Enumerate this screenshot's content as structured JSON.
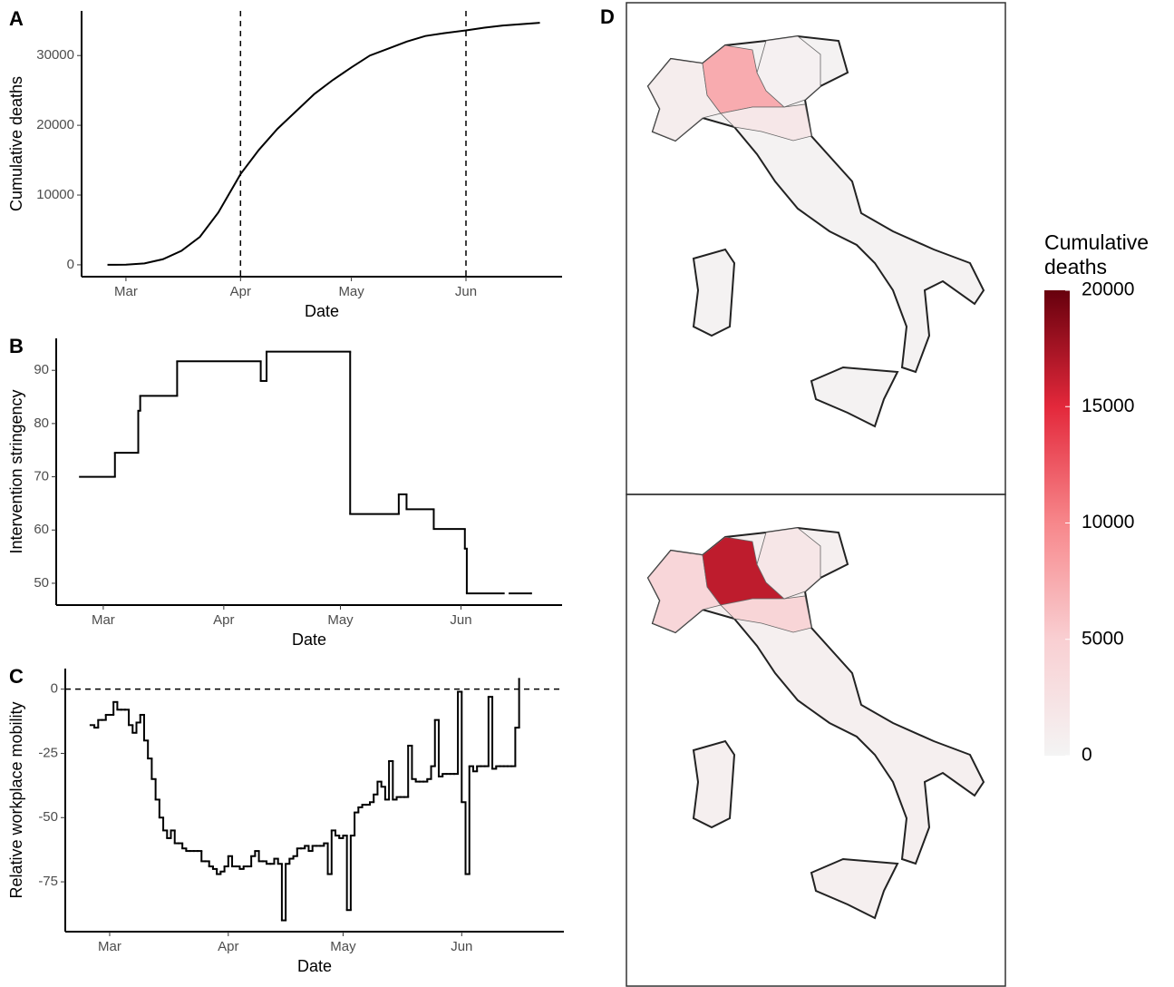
{
  "chart_data": [
    {
      "type": "line",
      "panel_label": "A",
      "xlabel": "Date",
      "ylabel": "Cumulative deaths",
      "color": "#000000",
      "x": [
        -5,
        0,
        5,
        10,
        15,
        20,
        25,
        31,
        36,
        41,
        46,
        51,
        56,
        61,
        66,
        71,
        76,
        81,
        86,
        92,
        97,
        102,
        107,
        112
      ],
      "values": [
        0,
        30,
        200,
        800,
        2000,
        4000,
        7500,
        13000,
        16500,
        19500,
        22000,
        24500,
        26500,
        28300,
        30000,
        31000,
        32000,
        32800,
        33200,
        33600,
        34000,
        34300,
        34500,
        34700
      ],
      "vlines": [
        31,
        92
      ],
      "xlim": [
        -12,
        118
      ],
      "xticks": [
        {
          "value": 0,
          "label": "Mar"
        },
        {
          "value": 31,
          "label": "Apr"
        },
        {
          "value": 61,
          "label": "May"
        },
        {
          "value": 92,
          "label": "Jun"
        }
      ],
      "ylim": [
        -1700,
        36400
      ],
      "yticks": [
        0,
        10000,
        20000,
        30000
      ]
    },
    {
      "type": "step",
      "panel_label": "B",
      "xlabel": "Date",
      "ylabel": "Intervention stringency",
      "color": "#000000",
      "x": [
        -6,
        3,
        9,
        9.5,
        19,
        40.5,
        42,
        63.5,
        76,
        78,
        85,
        93,
        93.5,
        103,
        104.5,
        110
      ],
      "values": [
        70,
        74.5,
        82.4,
        85.2,
        91.7,
        88,
        93.5,
        63,
        66.7,
        63.9,
        60.2,
        56.5,
        48.1,
        null,
        48.1,
        48.1
      ],
      "xlim": [
        -12.1,
        118
      ],
      "xticks": [
        {
          "value": 0,
          "label": "Mar"
        },
        {
          "value": 31,
          "label": "Apr"
        },
        {
          "value": 61,
          "label": "May"
        },
        {
          "value": 92,
          "label": "Jun"
        }
      ],
      "ylim": [
        45.9,
        96
      ],
      "yticks": [
        50,
        60,
        70,
        80,
        90
      ]
    },
    {
      "type": "step",
      "panel_label": "C",
      "xlabel": "Date",
      "ylabel": "Relative workplace mobility",
      "color": "#000000",
      "x": [
        -5,
        -4,
        -3,
        -2,
        -1,
        0,
        1,
        2,
        3,
        4,
        5,
        6,
        7,
        8,
        9,
        10,
        11,
        12,
        13,
        14,
        15,
        16,
        17,
        18,
        19,
        20,
        21,
        22,
        23,
        24,
        25,
        26,
        27,
        28,
        29,
        30,
        31,
        32,
        33,
        34,
        35,
        36,
        37,
        38,
        39,
        40,
        41,
        42,
        43,
        44,
        45,
        46,
        47,
        48,
        49,
        50,
        51,
        52,
        53,
        54,
        55,
        56,
        57,
        58,
        59,
        60,
        61,
        62,
        63,
        64,
        65,
        66,
        67,
        68,
        69,
        70,
        71,
        72,
        73,
        74,
        75,
        76,
        77,
        78,
        79,
        80,
        81,
        82,
        83,
        84,
        85,
        86,
        87,
        88,
        89,
        90,
        91,
        92,
        93,
        94,
        95,
        96,
        97,
        98,
        99,
        100,
        101,
        102,
        103,
        104,
        105,
        106,
        107
      ],
      "values": [
        -14,
        -15,
        -12,
        -12,
        -10,
        -10,
        -5,
        -8,
        -8,
        -8,
        -14,
        -17,
        -13,
        -10,
        -20,
        -27,
        -35,
        -43,
        -50,
        -55,
        -58,
        -55,
        -60,
        -60,
        -62,
        -63,
        -63,
        -63,
        -63,
        -67,
        -67,
        -69,
        -70,
        -72,
        -71,
        -69,
        -65,
        -69,
        -69,
        -70,
        -69,
        -69,
        -65,
        -63,
        -67,
        -67,
        -68,
        -68,
        -66,
        -68,
        -90,
        -68,
        -66,
        -65,
        -62,
        -62,
        -61,
        -63,
        -61,
        -61,
        -61,
        -60,
        -72,
        -55,
        -57,
        -58,
        -57,
        -86,
        -57,
        -48,
        -46,
        -45,
        -45,
        -44,
        -41,
        -36,
        -38,
        -43,
        -28,
        -43,
        -42,
        -42,
        -42,
        -22,
        -35,
        -36,
        -36,
        -36,
        -35,
        -30,
        -12,
        -34,
        -33,
        -33,
        -33,
        -33,
        -1,
        -44,
        -72,
        -30,
        -32,
        -30,
        -30,
        -30,
        -3,
        -31,
        -30,
        -30,
        -30,
        -30,
        -30,
        -15,
        4
      ],
      "hlines": [
        0
      ],
      "xlim": [
        -11.6,
        118.7
      ],
      "xticks": [
        {
          "value": 0,
          "label": "Mar"
        },
        {
          "value": 31,
          "label": "Apr"
        },
        {
          "value": 61,
          "label": "May"
        },
        {
          "value": 92,
          "label": "Jun"
        }
      ],
      "ylim": [
        -94.4,
        8
      ],
      "yticks": [
        0,
        -25,
        -50,
        -75
      ]
    },
    {
      "type": "choropleth",
      "panel_label": "D",
      "values": [
        250,
        1000,
        7500,
        1800,
        500
      ],
      "colorbar": {
        "title": "Cumulative deaths",
        "lim": [
          0,
          20000
        ],
        "ticks": [
          0,
          5000,
          10000,
          15000,
          20000
        ],
        "colors": [
          "#f4f4f4",
          "#f9cfd2",
          "#f7878b",
          "#e3283b",
          "#67000d"
        ]
      }
    },
    {
      "type": "choropleth",
      "values": [
        700,
        4000,
        16500,
        4200,
        1900
      ]
    }
  ]
}
